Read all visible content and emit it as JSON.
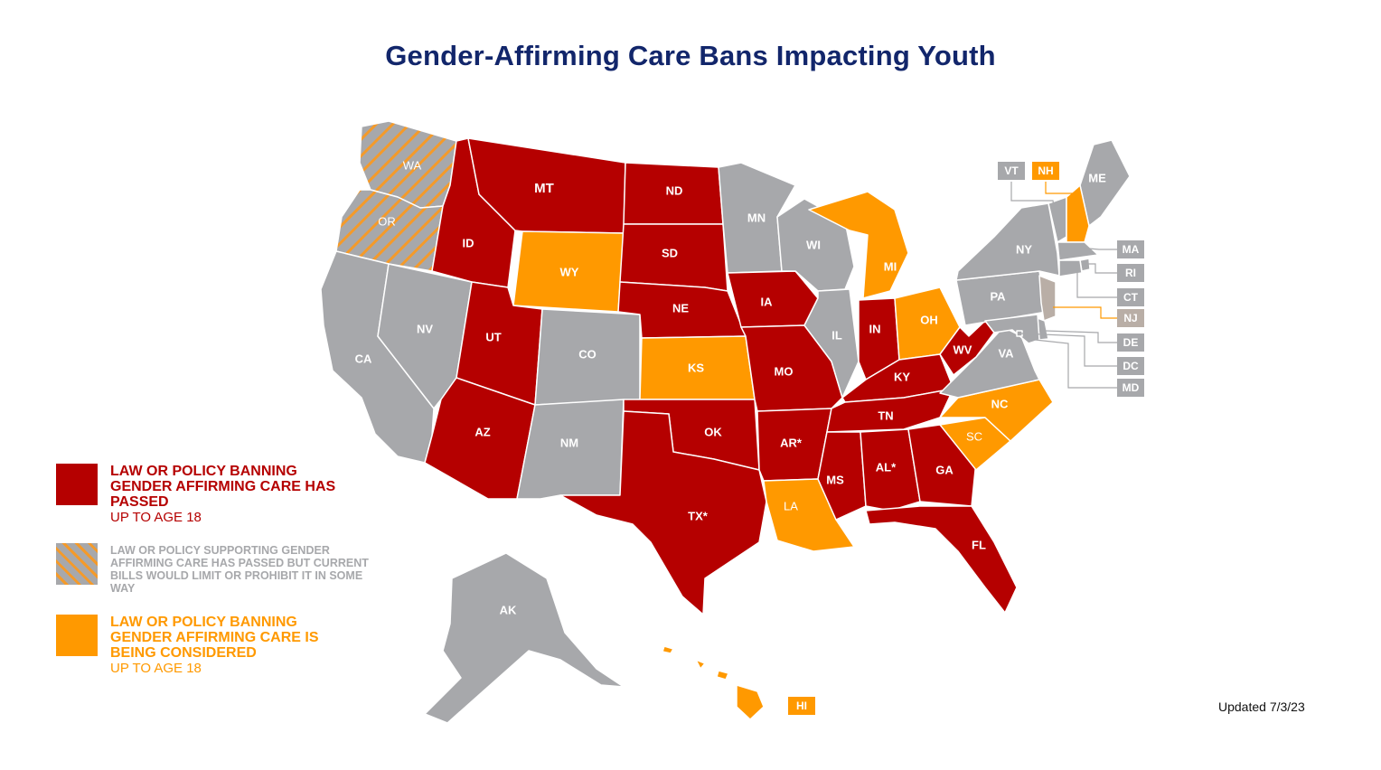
{
  "title": "Gender-Affirming Care Bans Impacting Youth",
  "updated": "Updated 7/3/23",
  "colors": {
    "passed": "#b50000",
    "considered": "#ff9900",
    "supporting": "#a7a8ab",
    "none": "#a7a8ab",
    "nj": "#b9aea6",
    "hatch": "#f49a2a"
  },
  "legend": [
    {
      "key": "passed",
      "heading": "LAW OR POLICY BANNING GENDER AFFIRMING CARE HAS PASSED",
      "sub": "UP TO AGE 18"
    },
    {
      "key": "supporting",
      "heading": "LAW OR POLICY SUPPORTING GENDER AFFIRMING CARE HAS PASSED BUT CURRENT BILLS WOULD LIMIT OR PROHIBIT IT IN SOME WAY",
      "sub": ""
    },
    {
      "key": "considered",
      "heading": "LAW OR POLICY BANNING GENDER AFFIRMING CARE IS BEING CONSIDERED",
      "sub": "UP TO AGE 18"
    }
  ],
  "states": {
    "WA": {
      "label": "WA",
      "status": "supporting"
    },
    "OR": {
      "label": "OR",
      "status": "supporting"
    },
    "CA": {
      "label": "CA",
      "status": "none"
    },
    "NV": {
      "label": "NV",
      "status": "none"
    },
    "ID": {
      "label": "ID",
      "status": "passed"
    },
    "MT": {
      "label": "MT",
      "status": "passed"
    },
    "WY": {
      "label": "WY",
      "status": "considered"
    },
    "UT": {
      "label": "UT",
      "status": "passed"
    },
    "CO": {
      "label": "CO",
      "status": "none"
    },
    "AZ": {
      "label": "AZ",
      "status": "passed"
    },
    "NM": {
      "label": "NM",
      "status": "none"
    },
    "ND": {
      "label": "ND",
      "status": "passed"
    },
    "SD": {
      "label": "SD",
      "status": "passed"
    },
    "NE": {
      "label": "NE",
      "status": "passed"
    },
    "KS": {
      "label": "KS",
      "status": "considered"
    },
    "OK": {
      "label": "OK",
      "status": "passed"
    },
    "TX": {
      "label": "TX*",
      "status": "passed"
    },
    "MN": {
      "label": "MN",
      "status": "none"
    },
    "IA": {
      "label": "IA",
      "status": "passed"
    },
    "MO": {
      "label": "MO",
      "status": "passed"
    },
    "AR": {
      "label": "AR*",
      "status": "passed"
    },
    "LA": {
      "label": "LA",
      "status": "considered"
    },
    "WI": {
      "label": "WI",
      "status": "none"
    },
    "IL": {
      "label": "IL",
      "status": "none"
    },
    "MI": {
      "label": "MI",
      "status": "considered"
    },
    "IN": {
      "label": "IN",
      "status": "passed"
    },
    "OH": {
      "label": "OH",
      "status": "considered"
    },
    "KY": {
      "label": "KY",
      "status": "passed"
    },
    "TN": {
      "label": "TN",
      "status": "passed"
    },
    "MS": {
      "label": "MS",
      "status": "passed"
    },
    "AL": {
      "label": "AL*",
      "status": "passed"
    },
    "GA": {
      "label": "GA",
      "status": "passed"
    },
    "FL": {
      "label": "FL",
      "status": "passed"
    },
    "SC": {
      "label": "SC",
      "status": "considered"
    },
    "NC": {
      "label": "NC",
      "status": "considered"
    },
    "VA": {
      "label": "VA",
      "status": "none"
    },
    "WV": {
      "label": "WV",
      "status": "passed"
    },
    "PA": {
      "label": "PA",
      "status": "none"
    },
    "NY": {
      "label": "NY",
      "status": "none"
    },
    "ME": {
      "label": "ME",
      "status": "none"
    },
    "VT": {
      "label": "VT",
      "status": "none"
    },
    "NH": {
      "label": "NH",
      "status": "considered"
    },
    "MA": {
      "label": "MA",
      "status": "none"
    },
    "RI": {
      "label": "RI",
      "status": "none"
    },
    "CT": {
      "label": "CT",
      "status": "none"
    },
    "NJ": {
      "label": "NJ",
      "status": "nj"
    },
    "DE": {
      "label": "DE",
      "status": "none"
    },
    "DC": {
      "label": "DC",
      "status": "none"
    },
    "MD": {
      "label": "MD",
      "status": "none"
    },
    "AK": {
      "label": "AK",
      "status": "none"
    },
    "HI": {
      "label": "HI",
      "status": "considered"
    }
  }
}
